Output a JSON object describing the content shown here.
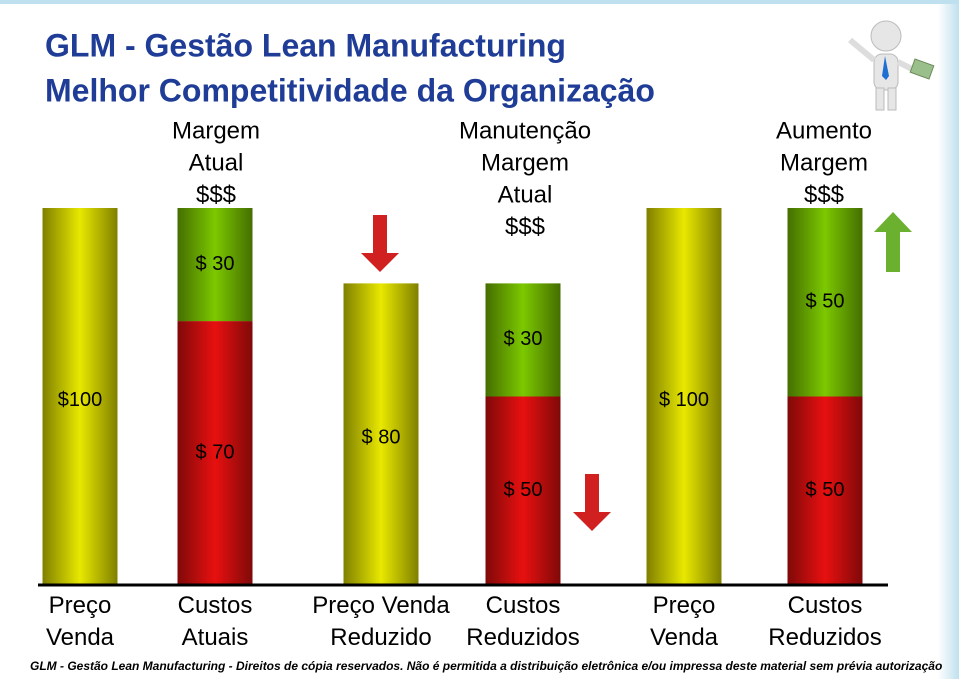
{
  "chart_data": {
    "type": "bar",
    "title": "GLM - Gestão Lean Manufacturing",
    "subtitle": "Melhor Competitividade da Organização",
    "categories": [
      "Preço Venda",
      "Custos Atuais",
      "Preço Venda Reduzido",
      "Custos Reduzidos",
      "Preço Venda",
      "Custos Reduzidos"
    ],
    "series": [
      {
        "color": "#e8e800",
        "values": [
          100,
          null,
          80,
          null,
          100,
          null
        ],
        "value_labels": [
          "$100",
          null,
          "$ 80",
          null,
          "$ 100",
          null
        ]
      },
      {
        "color": "#e81010",
        "values": [
          null,
          70,
          null,
          50,
          null,
          50
        ],
        "value_labels": [
          null,
          "$ 70",
          null,
          "$ 50",
          null,
          "$ 50"
        ]
      },
      {
        "color": "#7cc800",
        "values": [
          null,
          30,
          null,
          30,
          null,
          50
        ],
        "value_labels": [
          null,
          "$ 30",
          null,
          "$ 30",
          null,
          "$ 50"
        ]
      }
    ],
    "ylim": [
      0,
      100
    ],
    "annotations": [
      {
        "lines": [
          "Margem",
          "Atual",
          "$$$"
        ]
      },
      {
        "lines": [
          "Manutenção",
          "Margem",
          "Atual",
          "$$$"
        ]
      },
      {
        "lines": [
          "Aumento",
          "Margem",
          "$$$"
        ]
      }
    ],
    "footer": "GLM - Gestão Lean Manufacturing - Direitos de cópia reservados. Não é permitida a distribuição eletrônica e/ou impressa deste material sem prévia autorização"
  }
}
